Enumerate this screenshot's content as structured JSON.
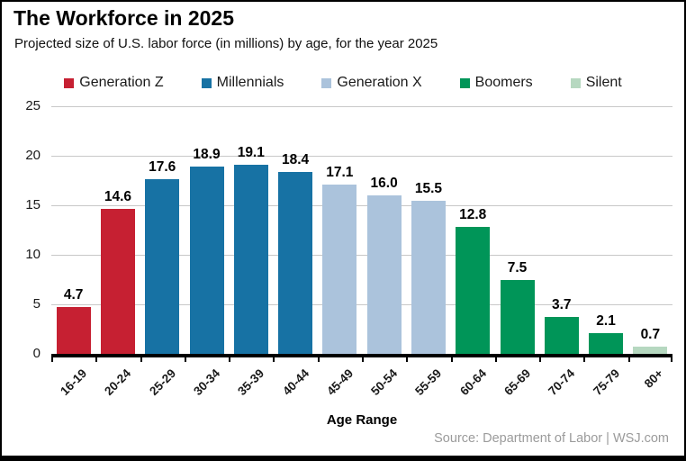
{
  "header": {
    "title": "The Workforce in 2025",
    "subtitle": "Projected size of U.S. labor force (in millions) by age, for the year 2025"
  },
  "chart_data": {
    "type": "bar",
    "title": "The Workforce in 2025",
    "subtitle": "Projected size of U.S. labor force (in millions) by age, for the year 2025",
    "xlabel": "Age Range",
    "ylabel": "",
    "ylim": [
      0,
      25
    ],
    "yticks": [
      0,
      5,
      10,
      15,
      20,
      25
    ],
    "grid": true,
    "legend_position": "top",
    "colors": {
      "gridline": "#c8c8c8",
      "axis": "#000000",
      "source_text": "#9b9b9b"
    },
    "groups": [
      {
        "id": "genz",
        "label": "Generation Z",
        "color": "#c62032"
      },
      {
        "id": "millennials",
        "label": "Millennials",
        "color": "#1772a4"
      },
      {
        "id": "genx",
        "label": "Generation X",
        "color": "#abc3dc"
      },
      {
        "id": "boomers",
        "label": "Boomers",
        "color": "#009558"
      },
      {
        "id": "silent",
        "label": "Silent",
        "color": "#b6d8c0"
      }
    ],
    "categories": [
      "16-19",
      "20-24",
      "25-29",
      "30-34",
      "35-39",
      "40-44",
      "45-49",
      "50-54",
      "55-59",
      "60-64",
      "65-69",
      "70-74",
      "75-79",
      "80+"
    ],
    "bars": [
      {
        "category": "16-19",
        "value": 4.7,
        "display": "4.7",
        "group": "genz"
      },
      {
        "category": "20-24",
        "value": 14.6,
        "display": "14.6",
        "group": "genz"
      },
      {
        "category": "25-29",
        "value": 17.6,
        "display": "17.6",
        "group": "millennials"
      },
      {
        "category": "30-34",
        "value": 18.9,
        "display": "18.9",
        "group": "millennials"
      },
      {
        "category": "35-39",
        "value": 19.1,
        "display": "19.1",
        "group": "millennials"
      },
      {
        "category": "40-44",
        "value": 18.4,
        "display": "18.4",
        "group": "millennials"
      },
      {
        "category": "45-49",
        "value": 17.1,
        "display": "17.1",
        "group": "genx"
      },
      {
        "category": "50-54",
        "value": 16.0,
        "display": "16.0",
        "group": "genx"
      },
      {
        "category": "55-59",
        "value": 15.5,
        "display": "15.5",
        "group": "genx"
      },
      {
        "category": "60-64",
        "value": 12.8,
        "display": "12.8",
        "group": "boomers"
      },
      {
        "category": "65-69",
        "value": 7.5,
        "display": "7.5",
        "group": "boomers"
      },
      {
        "category": "70-74",
        "value": 3.7,
        "display": "3.7",
        "group": "boomers"
      },
      {
        "category": "75-79",
        "value": 2.1,
        "display": "2.1",
        "group": "boomers"
      },
      {
        "category": "80+",
        "value": 0.7,
        "display": "0.7",
        "group": "silent"
      }
    ]
  },
  "footer": {
    "source": "Source: Department of Labor  |  WSJ.com"
  }
}
